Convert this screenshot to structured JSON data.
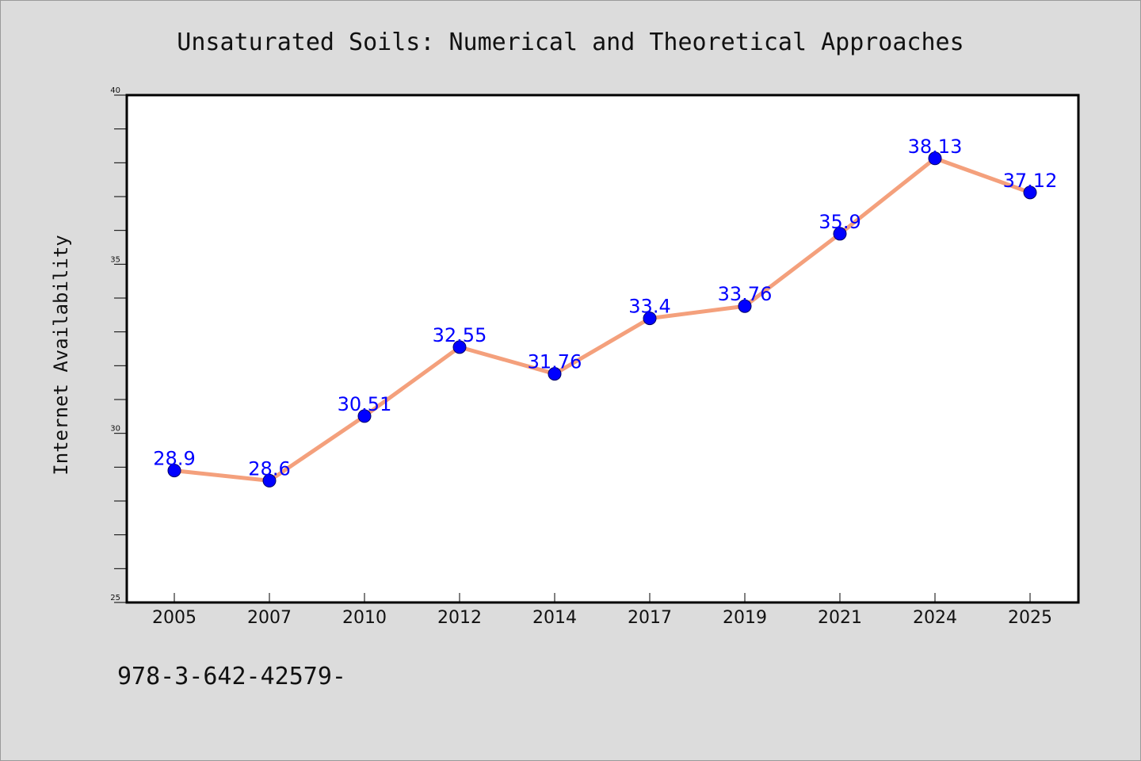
{
  "colors": {
    "background": "#dcdcdc",
    "plot_background": "#ffffff",
    "line": "#f4a07c",
    "marker": "#0000ff",
    "data_label": "#0000ff",
    "axis": "#000000"
  },
  "footer": {
    "isbn": "978-3-642-42579-"
  },
  "chart_data": {
    "type": "line",
    "title": "Unsaturated Soils: Numerical and Theoretical Approaches",
    "xlabel": "",
    "ylabel": "Internet Availability",
    "categories": [
      "2005",
      "2007",
      "2010",
      "2012",
      "2014",
      "2017",
      "2019",
      "2021",
      "2024",
      "2025"
    ],
    "values": [
      28.9,
      28.6,
      30.51,
      32.55,
      31.76,
      33.4,
      33.76,
      35.9,
      38.13,
      37.12
    ],
    "data_labels": [
      "28.9",
      "28.6",
      "30.51",
      "32.55",
      "31.76",
      "33.4",
      "33.76",
      "35.9",
      "38.13",
      "37.12"
    ],
    "ylim": [
      25,
      40
    ],
    "yticks": [
      "25",
      "30",
      "35",
      "40"
    ],
    "grid": false,
    "legend": "none",
    "marker": "circle"
  }
}
